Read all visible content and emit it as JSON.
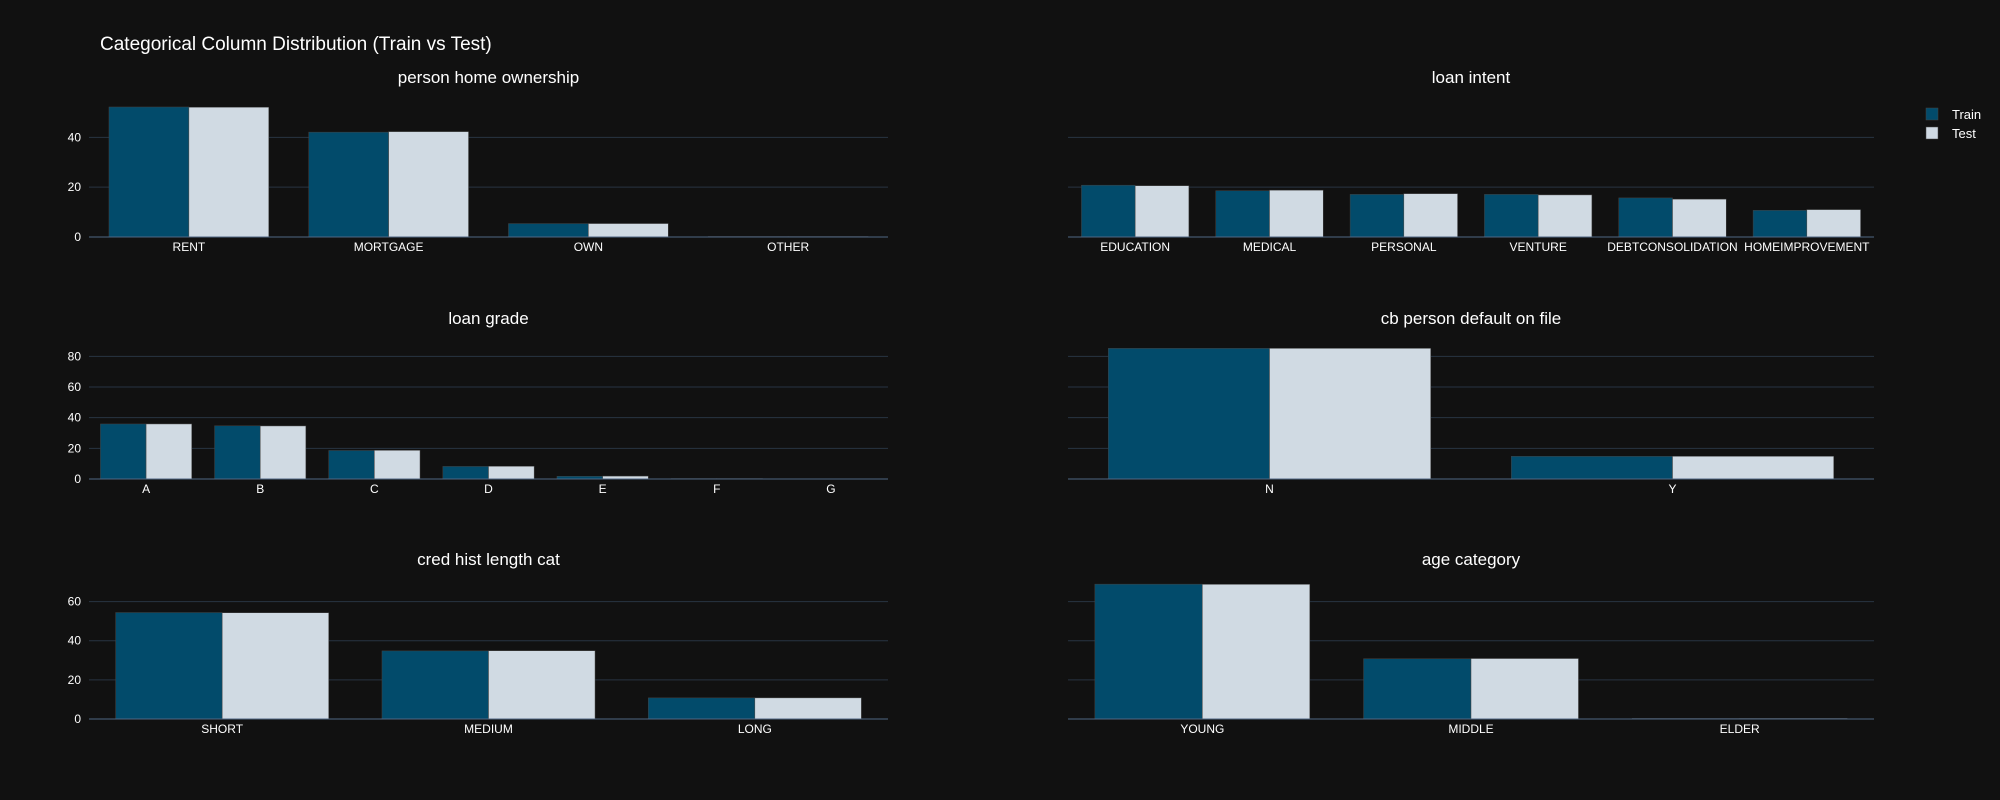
{
  "title": "Categorical Column Distribution (Train vs Test)",
  "colors": {
    "background": "#111111",
    "train": "#024b6b",
    "test": "#d0dae3",
    "grid": "#283442",
    "axis": "#506784",
    "text": "#ffffff"
  },
  "legend": {
    "placement": "top-right",
    "items": [
      {
        "name": "Train",
        "color": "#024b6b"
      },
      {
        "name": "Test",
        "color": "#d0dae3"
      }
    ]
  },
  "chart_data": [
    {
      "type": "bar",
      "title": "person home ownership",
      "categories": [
        "RENT",
        "MORTGAGE",
        "OWN",
        "OTHER"
      ],
      "series": [
        {
          "name": "Train",
          "values": [
            52.2,
            42.1,
            5.4,
            0.2
          ]
        },
        {
          "name": "Test",
          "values": [
            52.1,
            42.3,
            5.4,
            0.2
          ]
        }
      ],
      "ylim": [
        0,
        55
      ],
      "yticks": [
        0,
        20,
        40
      ],
      "show_y_tick_labels": true,
      "grid": true
    },
    {
      "type": "bar",
      "title": "loan intent",
      "categories": [
        "EDUCATION",
        "MEDICAL",
        "PERSONAL",
        "VENTURE",
        "DEBTCONSOLIDATION",
        "HOMEIMPROVEMENT"
      ],
      "series": [
        {
          "name": "Train",
          "values": [
            20.8,
            18.6,
            17.1,
            17.1,
            15.7,
            10.7
          ]
        },
        {
          "name": "Test",
          "values": [
            20.6,
            18.8,
            17.4,
            16.9,
            15.2,
            11.0
          ]
        }
      ],
      "ylim": [
        0,
        55
      ],
      "yticks": [
        0,
        20,
        40
      ],
      "show_y_tick_labels": false,
      "grid": true
    },
    {
      "type": "bar",
      "title": "loan grade",
      "categories": [
        "A",
        "B",
        "C",
        "D",
        "E",
        "F",
        "G"
      ],
      "series": [
        {
          "name": "Train",
          "values": [
            35.9,
            34.7,
            18.6,
            8.2,
            1.8,
            0.3,
            0.1
          ]
        },
        {
          "name": "Test",
          "values": [
            35.9,
            34.6,
            18.7,
            8.3,
            1.9,
            0.3,
            0.1
          ]
        }
      ],
      "ylim": [
        0,
        90
      ],
      "yticks": [
        0,
        20,
        40,
        60,
        80
      ],
      "show_y_tick_labels": true,
      "grid": true
    },
    {
      "type": "bar",
      "title": "cb person default on file",
      "categories": [
        "N",
        "Y"
      ],
      "series": [
        {
          "name": "Train",
          "values": [
            85.2,
            14.8
          ]
        },
        {
          "name": "Test",
          "values": [
            85.2,
            14.8
          ]
        }
      ],
      "ylim": [
        0,
        90
      ],
      "yticks": [
        0,
        20,
        40,
        60,
        80
      ],
      "show_y_tick_labels": false,
      "grid": true
    },
    {
      "type": "bar",
      "title": "cred hist length cat",
      "categories": [
        "SHORT",
        "MEDIUM",
        "LONG"
      ],
      "series": [
        {
          "name": "Train",
          "values": [
            54.4,
            34.8,
            10.8
          ]
        },
        {
          "name": "Test",
          "values": [
            54.3,
            34.9,
            10.8
          ]
        }
      ],
      "ylim": [
        0,
        70
      ],
      "yticks": [
        0,
        20,
        40,
        60
      ],
      "show_y_tick_labels": true,
      "grid": true
    },
    {
      "type": "bar",
      "title": "age category",
      "categories": [
        "YOUNG",
        "MIDDLE",
        "ELDER"
      ],
      "series": [
        {
          "name": "Train",
          "values": [
            68.9,
            30.8,
            0.3
          ]
        },
        {
          "name": "Test",
          "values": [
            68.8,
            30.9,
            0.3
          ]
        }
      ],
      "ylim": [
        0,
        70
      ],
      "yticks": [
        0,
        20,
        40,
        60
      ],
      "show_y_tick_labels": false,
      "grid": true
    }
  ]
}
